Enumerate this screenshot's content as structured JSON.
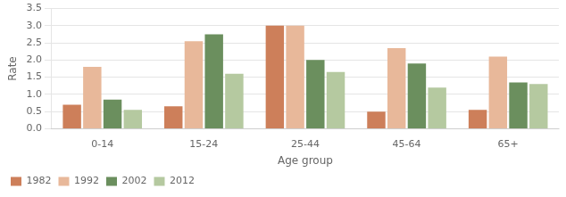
{
  "chart_data": {
    "type": "bar",
    "xlabel": "Age group",
    "ylabel": "Rate",
    "categories": [
      "0-14",
      "15-24",
      "25-44",
      "45-64",
      "65+"
    ],
    "series": [
      {
        "name": "1982",
        "color": "#cd7f5a",
        "values": [
          0.7,
          0.65,
          3.0,
          0.5,
          0.55
        ]
      },
      {
        "name": "1992",
        "color": "#e8b89a",
        "values": [
          1.8,
          2.55,
          3.0,
          2.35,
          2.1
        ]
      },
      {
        "name": "2002",
        "color": "#6b8f5e",
        "values": [
          0.85,
          2.75,
          2.0,
          1.9,
          1.35
        ]
      },
      {
        "name": "2012",
        "color": "#b5c9a0",
        "values": [
          0.55,
          1.6,
          1.65,
          1.2,
          1.3
        ]
      }
    ],
    "ylim": [
      0.0,
      3.5
    ],
    "yticks": [
      {
        "value": 0.0,
        "label": "0.0"
      },
      0.5,
      {
        "value": 1.0,
        "label": "1.0"
      },
      1.5,
      {
        "value": 2.0,
        "label": "2.0"
      },
      2.5,
      {
        "value": 3.0,
        "label": "3.0"
      },
      3.5
    ],
    "grid": true,
    "legend": "bottom"
  }
}
